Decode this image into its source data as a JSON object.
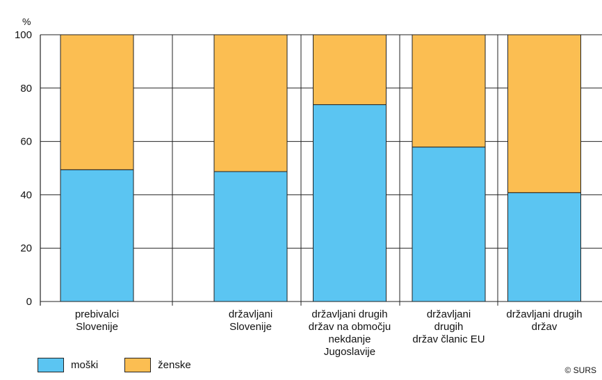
{
  "chart_data": {
    "type": "bar",
    "stacked": true,
    "unit_label": "%",
    "ylim": [
      0,
      100
    ],
    "yticks": [
      0,
      20,
      40,
      60,
      80,
      100
    ],
    "grid": true,
    "categories": [
      [
        "prebivalci",
        "Slovenije"
      ],
      [
        "državljani",
        "Slovenije"
      ],
      [
        "državljani drugih",
        "držav na območju",
        "nekdanje",
        "Jugoslavije"
      ],
      [
        "državljani",
        "drugih",
        "držav članic EU"
      ],
      [
        "državljani drugih",
        "držav"
      ]
    ],
    "series": [
      {
        "name": "moški",
        "values": [
          49.4,
          48.7,
          73.8,
          57.9,
          40.8
        ]
      },
      {
        "name": "ženske",
        "values": [
          50.6,
          51.3,
          26.2,
          42.1,
          59.2
        ]
      }
    ],
    "colors": {
      "moški": "#5bc5f2",
      "ženske": "#fbbe52"
    },
    "legend_position": "bottom-left"
  },
  "copyright": "© SURS"
}
